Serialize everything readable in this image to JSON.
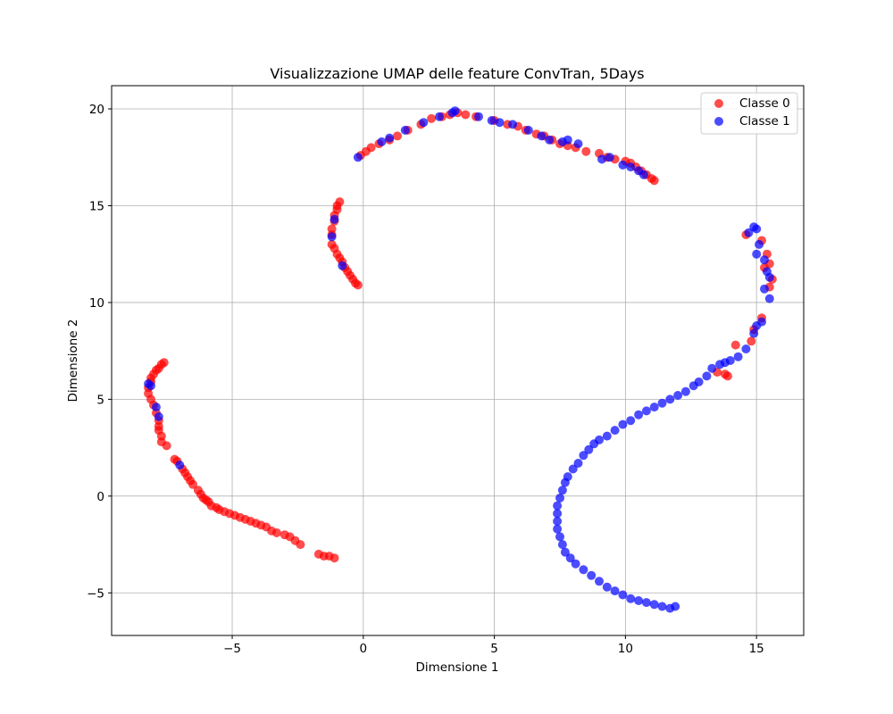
{
  "chart_data": {
    "type": "scatter",
    "title": "Visualizzazione UMAP delle feature ConvTran, 5Days",
    "xlabel": "Dimensione 1",
    "ylabel": "Dimensione 2",
    "xlim": [
      -9.6,
      16.8
    ],
    "ylim": [
      -7.2,
      21.2
    ],
    "xticks": [
      -5,
      0,
      5,
      10,
      15
    ],
    "yticks": [
      -5,
      0,
      5,
      10,
      15,
      20
    ],
    "xtick_labels": [
      "−5",
      "0",
      "5",
      "10",
      "15"
    ],
    "ytick_labels": [
      "−5",
      "0",
      "5",
      "10",
      "15",
      "20"
    ],
    "grid": true,
    "legend": "top-right",
    "series": [
      {
        "name": "Classe 0",
        "color": "#ff0000",
        "points": [
          [
            -7.6,
            6.9
          ],
          [
            -7.7,
            6.8
          ],
          [
            -7.8,
            6.6
          ],
          [
            -7.9,
            6.5
          ],
          [
            -8.0,
            6.3
          ],
          [
            -8.1,
            6.1
          ],
          [
            -8.1,
            5.9
          ],
          [
            -8.2,
            5.6
          ],
          [
            -8.2,
            5.3
          ],
          [
            -8.1,
            5.0
          ],
          [
            -8.0,
            4.7
          ],
          [
            -7.9,
            4.3
          ],
          [
            -7.8,
            3.9
          ],
          [
            -7.8,
            3.6
          ],
          [
            -7.8,
            3.4
          ],
          [
            -7.7,
            3.1
          ],
          [
            -7.7,
            2.8
          ],
          [
            -7.5,
            2.6
          ],
          [
            -7.2,
            1.9
          ],
          [
            -7.1,
            1.8
          ],
          [
            -6.9,
            1.4
          ],
          [
            -6.8,
            1.2
          ],
          [
            -6.7,
            1.0
          ],
          [
            -6.6,
            0.8
          ],
          [
            -6.5,
            0.6
          ],
          [
            -6.3,
            0.3
          ],
          [
            -6.2,
            0.1
          ],
          [
            -6.1,
            -0.1
          ],
          [
            -6.0,
            -0.2
          ],
          [
            -5.9,
            -0.3
          ],
          [
            -5.8,
            -0.5
          ],
          [
            -5.6,
            -0.6
          ],
          [
            -5.5,
            -0.7
          ],
          [
            -5.3,
            -0.8
          ],
          [
            -5.1,
            -0.9
          ],
          [
            -4.9,
            -1.0
          ],
          [
            -4.7,
            -1.1
          ],
          [
            -4.5,
            -1.2
          ],
          [
            -4.3,
            -1.3
          ],
          [
            -4.1,
            -1.4
          ],
          [
            -3.9,
            -1.5
          ],
          [
            -3.7,
            -1.6
          ],
          [
            -3.5,
            -1.8
          ],
          [
            -3.3,
            -1.9
          ],
          [
            -3.0,
            -2.0
          ],
          [
            -2.8,
            -2.1
          ],
          [
            -2.6,
            -2.3
          ],
          [
            -2.4,
            -2.5
          ],
          [
            -1.7,
            -3.0
          ],
          [
            -1.5,
            -3.1
          ],
          [
            -1.3,
            -3.1
          ],
          [
            -1.1,
            -3.2
          ],
          [
            -0.9,
            15.2
          ],
          [
            -1.0,
            15.0
          ],
          [
            -1.0,
            14.8
          ],
          [
            -1.1,
            14.5
          ],
          [
            -1.1,
            14.2
          ],
          [
            -1.2,
            13.8
          ],
          [
            -1.2,
            13.5
          ],
          [
            -1.2,
            13.0
          ],
          [
            -1.1,
            12.8
          ],
          [
            -1.0,
            12.5
          ],
          [
            -0.9,
            12.3
          ],
          [
            -0.8,
            12.1
          ],
          [
            -0.7,
            11.8
          ],
          [
            -0.6,
            11.6
          ],
          [
            -0.5,
            11.4
          ],
          [
            -0.4,
            11.2
          ],
          [
            -0.3,
            11.0
          ],
          [
            -0.2,
            10.9
          ],
          [
            -0.1,
            17.6
          ],
          [
            0.1,
            17.8
          ],
          [
            0.3,
            18.0
          ],
          [
            0.6,
            18.2
          ],
          [
            1.0,
            18.4
          ],
          [
            1.3,
            18.6
          ],
          [
            1.7,
            18.9
          ],
          [
            2.2,
            19.2
          ],
          [
            2.6,
            19.5
          ],
          [
            3.0,
            19.6
          ],
          [
            3.3,
            19.7
          ],
          [
            3.6,
            19.8
          ],
          [
            3.9,
            19.7
          ],
          [
            4.3,
            19.6
          ],
          [
            5.0,
            19.4
          ],
          [
            5.5,
            19.2
          ],
          [
            5.9,
            19.1
          ],
          [
            6.2,
            18.9
          ],
          [
            6.6,
            18.7
          ],
          [
            6.9,
            18.6
          ],
          [
            7.2,
            18.4
          ],
          [
            7.5,
            18.2
          ],
          [
            7.8,
            18.1
          ],
          [
            8.1,
            18.0
          ],
          [
            8.5,
            17.8
          ],
          [
            9.0,
            17.7
          ],
          [
            9.3,
            17.5
          ],
          [
            9.6,
            17.4
          ],
          [
            10.0,
            17.3
          ],
          [
            10.2,
            17.2
          ],
          [
            10.4,
            17.0
          ],
          [
            10.6,
            16.8
          ],
          [
            10.8,
            16.6
          ],
          [
            11.0,
            16.4
          ],
          [
            11.1,
            16.3
          ],
          [
            14.6,
            13.5
          ],
          [
            15.2,
            13.2
          ],
          [
            15.4,
            12.5
          ],
          [
            15.5,
            12.0
          ],
          [
            15.3,
            11.8
          ],
          [
            15.6,
            11.2
          ],
          [
            15.5,
            10.8
          ],
          [
            15.2,
            9.2
          ],
          [
            14.9,
            8.6
          ],
          [
            14.8,
            8.0
          ],
          [
            14.2,
            7.8
          ],
          [
            13.9,
            6.2
          ],
          [
            13.8,
            6.3
          ],
          [
            13.5,
            6.4
          ]
        ]
      },
      {
        "name": "Classe 1",
        "color": "#0000ff",
        "points": [
          [
            -8.2,
            5.8
          ],
          [
            -8.1,
            5.7
          ],
          [
            -7.9,
            4.6
          ],
          [
            -7.8,
            4.1
          ],
          [
            -7.0,
            1.6
          ],
          [
            -1.1,
            14.3
          ],
          [
            -1.2,
            13.4
          ],
          [
            -0.8,
            11.9
          ],
          [
            -0.2,
            17.5
          ],
          [
            0.7,
            18.3
          ],
          [
            1.0,
            18.5
          ],
          [
            1.6,
            18.9
          ],
          [
            2.3,
            19.3
          ],
          [
            2.9,
            19.6
          ],
          [
            3.4,
            19.8
          ],
          [
            3.5,
            19.9
          ],
          [
            4.4,
            19.6
          ],
          [
            4.9,
            19.4
          ],
          [
            5.2,
            19.3
          ],
          [
            5.7,
            19.2
          ],
          [
            6.3,
            18.9
          ],
          [
            6.8,
            18.6
          ],
          [
            7.1,
            18.4
          ],
          [
            7.6,
            18.3
          ],
          [
            7.8,
            18.4
          ],
          [
            8.2,
            18.2
          ],
          [
            9.1,
            17.4
          ],
          [
            9.4,
            17.5
          ],
          [
            9.9,
            17.1
          ],
          [
            10.2,
            17.0
          ],
          [
            10.5,
            16.8
          ],
          [
            10.7,
            16.6
          ],
          [
            14.9,
            13.9
          ],
          [
            15.0,
            13.8
          ],
          [
            14.7,
            13.6
          ],
          [
            15.1,
            13.0
          ],
          [
            15.0,
            12.5
          ],
          [
            15.3,
            12.2
          ],
          [
            15.4,
            11.6
          ],
          [
            15.5,
            11.3
          ],
          [
            15.3,
            10.7
          ],
          [
            15.5,
            10.2
          ],
          [
            15.2,
            9.0
          ],
          [
            15.0,
            8.8
          ],
          [
            14.9,
            8.4
          ],
          [
            14.6,
            7.6
          ],
          [
            14.3,
            7.2
          ],
          [
            14.0,
            7.0
          ],
          [
            13.8,
            6.9
          ],
          [
            13.6,
            6.8
          ],
          [
            13.3,
            6.6
          ],
          [
            13.1,
            6.2
          ],
          [
            12.8,
            5.9
          ],
          [
            12.6,
            5.7
          ],
          [
            12.3,
            5.4
          ],
          [
            12.0,
            5.2
          ],
          [
            11.7,
            5.0
          ],
          [
            11.4,
            4.8
          ],
          [
            11.1,
            4.6
          ],
          [
            10.8,
            4.4
          ],
          [
            10.5,
            4.2
          ],
          [
            10.2,
            3.9
          ],
          [
            9.9,
            3.7
          ],
          [
            9.6,
            3.4
          ],
          [
            9.3,
            3.1
          ],
          [
            9.0,
            2.9
          ],
          [
            8.8,
            2.7
          ],
          [
            8.6,
            2.4
          ],
          [
            8.4,
            2.1
          ],
          [
            8.2,
            1.7
          ],
          [
            8.0,
            1.4
          ],
          [
            7.8,
            1.0
          ],
          [
            7.7,
            0.7
          ],
          [
            7.6,
            0.3
          ],
          [
            7.5,
            -0.1
          ],
          [
            7.4,
            -0.5
          ],
          [
            7.4,
            -0.9
          ],
          [
            7.4,
            -1.3
          ],
          [
            7.4,
            -1.7
          ],
          [
            7.5,
            -2.1
          ],
          [
            7.6,
            -2.5
          ],
          [
            7.7,
            -2.9
          ],
          [
            7.9,
            -3.2
          ],
          [
            8.1,
            -3.5
          ],
          [
            8.4,
            -3.8
          ],
          [
            8.7,
            -4.1
          ],
          [
            9.0,
            -4.4
          ],
          [
            9.3,
            -4.7
          ],
          [
            9.6,
            -4.9
          ],
          [
            9.9,
            -5.1
          ],
          [
            10.2,
            -5.3
          ],
          [
            10.5,
            -5.4
          ],
          [
            10.8,
            -5.5
          ],
          [
            11.1,
            -5.6
          ],
          [
            11.4,
            -5.7
          ],
          [
            11.7,
            -5.8
          ],
          [
            11.9,
            -5.7
          ]
        ]
      }
    ]
  }
}
